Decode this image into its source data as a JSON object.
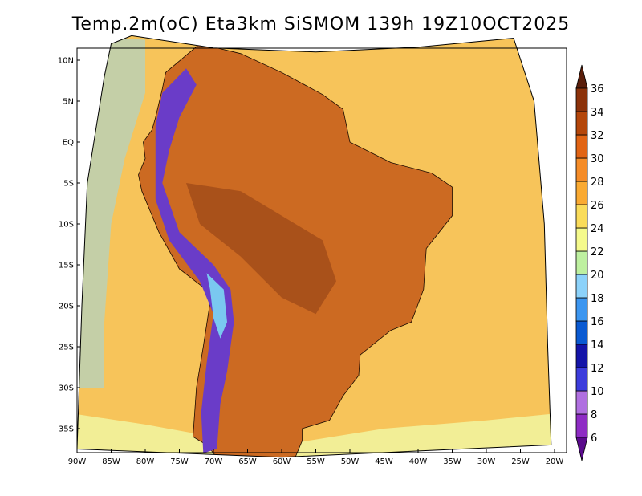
{
  "title": "Temp.2m(oC) Eta3km SiSMOM 139h 19Z10OCT2025",
  "lat_labels": [
    "10N",
    "5N",
    "EQ",
    "5S",
    "10S",
    "15S",
    "20S",
    "25S",
    "30S",
    "35S"
  ],
  "lat_values": [
    10,
    5,
    0,
    -5,
    -10,
    -15,
    -20,
    -25,
    -30,
    -35
  ],
  "lon_labels": [
    "90W",
    "85W",
    "80W",
    "75W",
    "70W",
    "65W",
    "60W",
    "55W",
    "50W",
    "45W",
    "40W",
    "35W",
    "30W",
    "25W",
    "20W"
  ],
  "lon_values": [
    -90,
    -85,
    -80,
    -75,
    -70,
    -65,
    -60,
    -55,
    -50,
    -45,
    -40,
    -35,
    -30,
    -25,
    -20
  ],
  "colorbar": {
    "labels": [
      "6",
      "8",
      "10",
      "12",
      "14",
      "16",
      "18",
      "20",
      "22",
      "24",
      "26",
      "28",
      "30",
      "32",
      "34",
      "36"
    ],
    "colors": [
      "#5a0a8c",
      "#8e2cc4",
      "#b070e0",
      "#3c3cdc",
      "#1414a8",
      "#0a5ad2",
      "#3c96f0",
      "#8cd2fa",
      "#bef0a0",
      "#f5fa8c",
      "#fadc5a",
      "#faaa32",
      "#f58c28",
      "#e16414",
      "#b4460a",
      "#8c320a",
      "#5a1e0a"
    ]
  },
  "map": {
    "lon_range": [
      -90,
      -20
    ],
    "lat_range": [
      -38,
      11
    ],
    "ocean_color": "#f7c45a",
    "land_color": "#cc6a22",
    "hot_core_color": "#8c3c14",
    "andes_color": "#6a3cc8",
    "cool_coast_color": "#9ad8e8"
  }
}
